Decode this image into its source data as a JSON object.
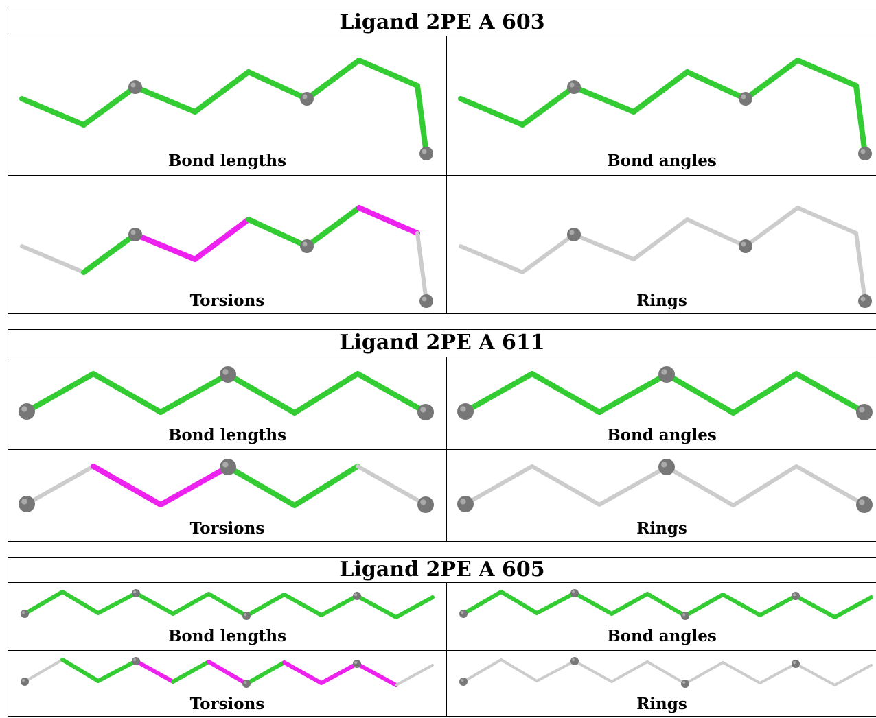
{
  "panels": [
    {
      "title": "Ligand 2PE A 603",
      "cells": [
        {
          "label": "Bond lengths",
          "mol": "m603",
          "colors": [
            "G",
            "G",
            "G",
            "G",
            "G",
            "G",
            "G",
            "G"
          ]
        },
        {
          "label": "Bond angles",
          "mol": "m603",
          "colors": [
            "G",
            "G",
            "G",
            "G",
            "G",
            "G",
            "G",
            "G"
          ]
        },
        {
          "label": "Torsions",
          "mol": "m603",
          "colors": [
            "g",
            "G",
            "M",
            "M",
            "G",
            "G",
            "M",
            "g"
          ]
        },
        {
          "label": "Rings",
          "mol": "m603",
          "colors": [
            "g",
            "g",
            "g",
            "g",
            "g",
            "g",
            "g",
            "g"
          ]
        }
      ]
    },
    {
      "title": "Ligand 2PE A 611",
      "cells": [
        {
          "label": "Bond lengths",
          "mol": "m611",
          "colors": [
            "G",
            "G",
            "G",
            "G",
            "G",
            "G"
          ]
        },
        {
          "label": "Bond angles",
          "mol": "m611",
          "colors": [
            "G",
            "G",
            "G",
            "G",
            "G",
            "G"
          ]
        },
        {
          "label": "Torsions",
          "mol": "m611",
          "colors": [
            "g",
            "M",
            "M",
            "G",
            "G",
            "g"
          ]
        },
        {
          "label": "Rings",
          "mol": "m611",
          "colors": [
            "g",
            "g",
            "g",
            "g",
            "g",
            "g"
          ]
        }
      ]
    },
    {
      "title": "Ligand 2PE A 605",
      "cells": [
        {
          "label": "Bond lengths",
          "mol": "m605",
          "colors": [
            "G",
            "G",
            "G",
            "G",
            "G",
            "G",
            "G",
            "G",
            "G",
            "G",
            "G",
            "G"
          ]
        },
        {
          "label": "Bond angles",
          "mol": "m605",
          "colors": [
            "G",
            "G",
            "G",
            "G",
            "G",
            "G",
            "G",
            "G",
            "G",
            "G",
            "G",
            "G"
          ]
        },
        {
          "label": "Torsions",
          "mol": "m605",
          "colors": [
            "g",
            "G",
            "G",
            "M",
            "G",
            "M",
            "G",
            "M",
            "M",
            "M",
            "g",
            "g"
          ]
        },
        {
          "label": "Rings",
          "mol": "m605",
          "colors": [
            "g",
            "g",
            "g",
            "g",
            "g",
            "g",
            "g",
            "g",
            "g",
            "g",
            "g",
            "g"
          ]
        }
      ]
    }
  ],
  "colors": {
    "G": "#33cc33",
    "M": "#ee22ee",
    "g": "#cccccc",
    "atom": "#777777"
  }
}
